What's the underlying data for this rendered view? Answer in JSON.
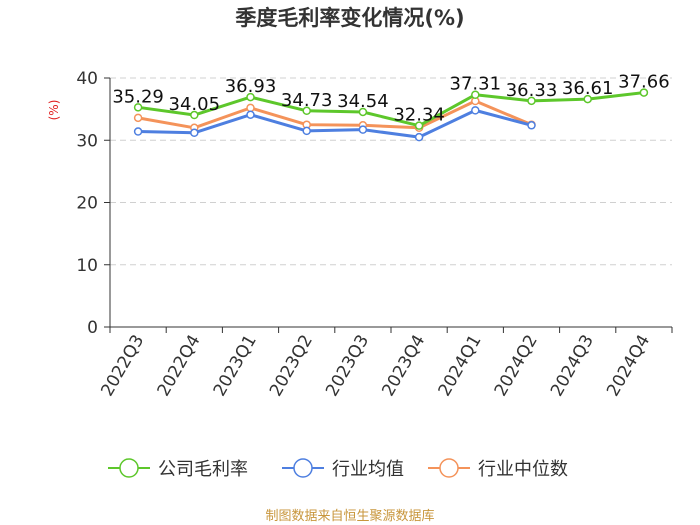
{
  "chart_data": {
    "type": "line",
    "title": "季度毛利率变化情况(%)",
    "ylabel": "(%)",
    "xlabel": "",
    "ylim": [
      0,
      40
    ],
    "yticks": [
      0,
      10,
      20,
      30,
      40
    ],
    "grid": true,
    "legend_position": "bottom",
    "categories": [
      "2022Q3",
      "2022Q4",
      "2023Q1",
      "2023Q2",
      "2023Q3",
      "2023Q4",
      "2024Q1",
      "2024Q2",
      "2024Q3",
      "2024Q4"
    ],
    "series": [
      {
        "name": "公司毛利率",
        "color": "#5dc72b",
        "show_labels": true,
        "values": [
          35.29,
          34.05,
          36.93,
          34.73,
          34.54,
          32.34,
          37.31,
          36.33,
          36.61,
          37.66
        ]
      },
      {
        "name": "行业均值",
        "color": "#4e7fe0",
        "show_labels": false,
        "values": [
          31.4,
          31.2,
          34.1,
          31.5,
          31.7,
          30.5,
          34.8,
          32.4,
          null,
          null
        ]
      },
      {
        "name": "行业中位数",
        "color": "#f4935a",
        "show_labels": false,
        "values": [
          33.6,
          32.0,
          35.2,
          32.5,
          32.4,
          32.0,
          36.3,
          32.5,
          null,
          null
        ]
      }
    ]
  },
  "source": "制图数据来自恒生聚源数据库"
}
